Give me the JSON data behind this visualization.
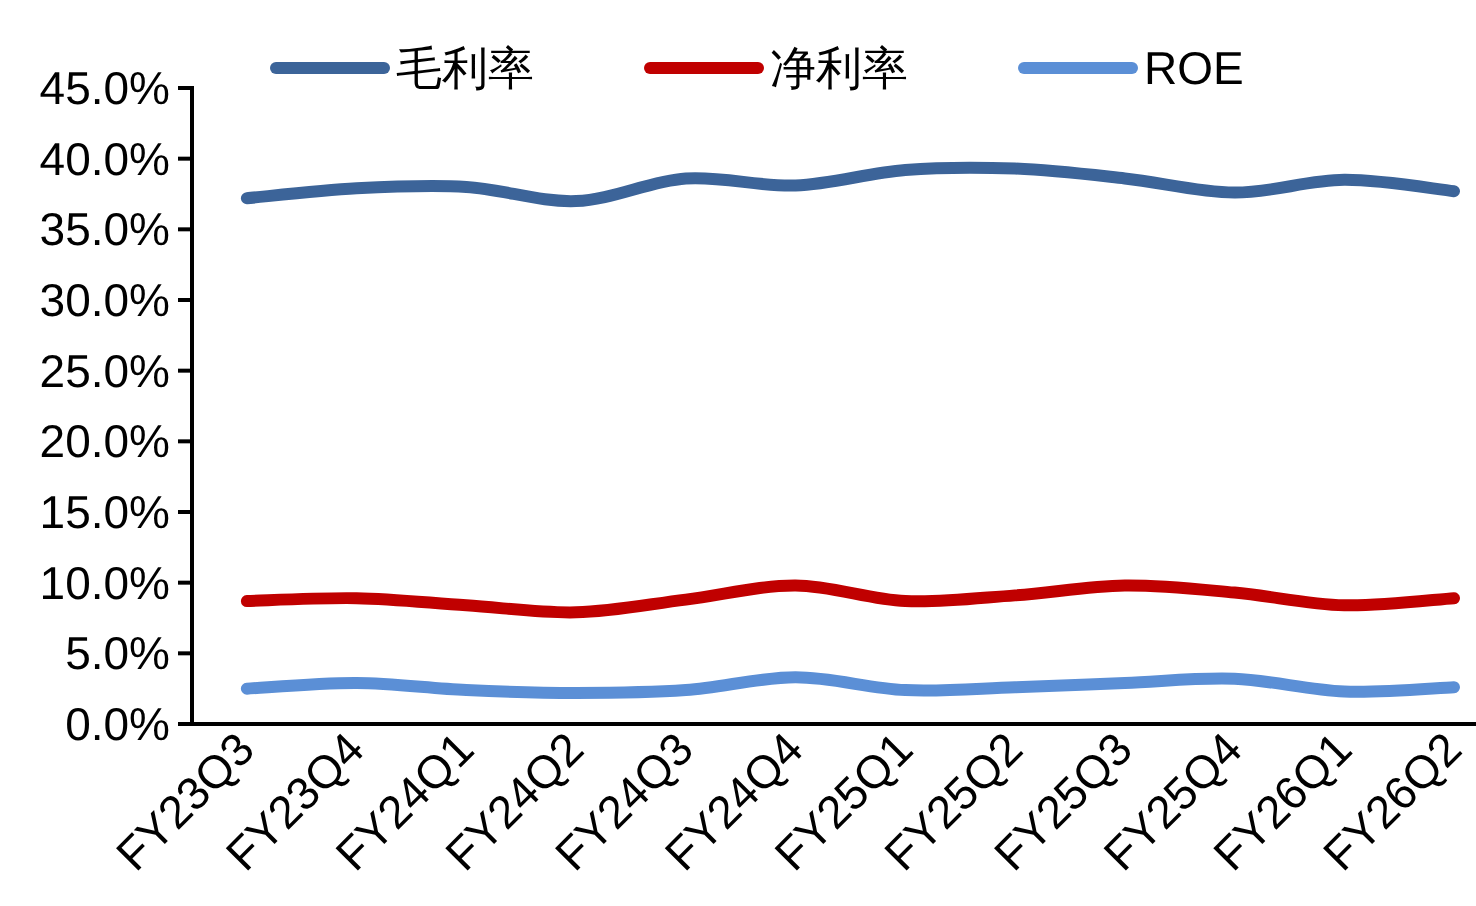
{
  "chart_data": {
    "type": "line",
    "categories": [
      "FY23Q3",
      "FY23Q4",
      "FY24Q1",
      "FY24Q2",
      "FY24Q3",
      "FY24Q4",
      "FY25Q1",
      "FY25Q2",
      "FY25Q3",
      "FY25Q4",
      "FY26Q1",
      "FY26Q2"
    ],
    "series": [
      {
        "name": "毛利率",
        "color": "#3c6499",
        "values": [
          37.2,
          37.9,
          38.0,
          37.0,
          38.6,
          38.1,
          39.2,
          39.3,
          38.6,
          37.6,
          38.5,
          37.7
        ]
      },
      {
        "name": "净利率",
        "color": "#c00000",
        "values": [
          8.7,
          8.9,
          8.4,
          7.9,
          8.8,
          9.8,
          8.7,
          9.1,
          9.8,
          9.3,
          8.4,
          8.9
        ]
      },
      {
        "name": "ROE",
        "color": "#5b8fd6",
        "values": [
          2.5,
          2.9,
          2.4,
          2.2,
          2.4,
          3.3,
          2.4,
          2.6,
          2.9,
          3.2,
          2.3,
          2.6
        ]
      }
    ],
    "ylim": [
      0,
      45
    ],
    "yticks": [
      {
        "value": 0,
        "label": "0.0%"
      },
      {
        "value": 5,
        "label": "5.0%"
      },
      {
        "value": 10,
        "label": "10.0%"
      },
      {
        "value": 15,
        "label": "15.0%"
      },
      {
        "value": 20,
        "label": "20.0%"
      },
      {
        "value": 25,
        "label": "25.0%"
      },
      {
        "value": 30,
        "label": "30.0%"
      },
      {
        "value": 35,
        "label": "35.0%"
      },
      {
        "value": 40,
        "label": "40.0%"
      },
      {
        "value": 45,
        "label": "45.0%"
      }
    ],
    "legend": "top"
  }
}
